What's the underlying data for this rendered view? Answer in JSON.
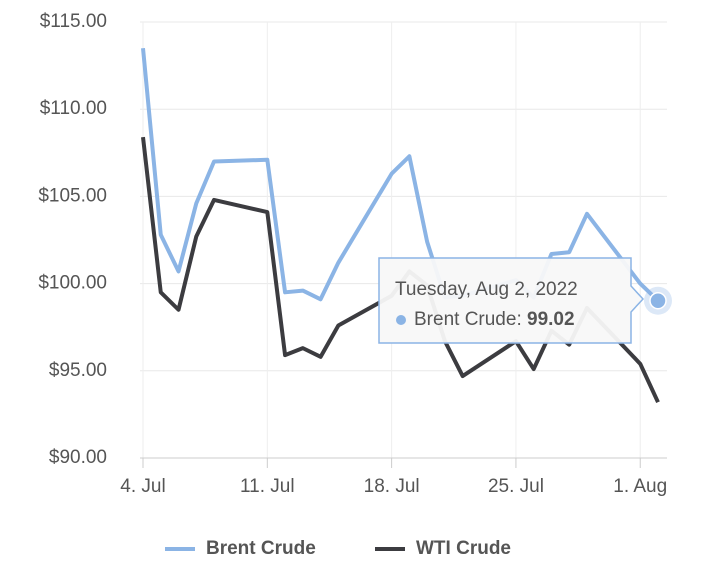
{
  "chart_data": {
    "type": "line",
    "x": [
      "2022-07-04",
      "2022-07-05",
      "2022-07-06",
      "2022-07-07",
      "2022-07-08",
      "2022-07-11",
      "2022-07-12",
      "2022-07-13",
      "2022-07-14",
      "2022-07-15",
      "2022-07-18",
      "2022-07-19",
      "2022-07-20",
      "2022-07-21",
      "2022-07-22",
      "2022-07-25",
      "2022-07-26",
      "2022-07-27",
      "2022-07-28",
      "2022-07-29",
      "2022-08-01",
      "2022-08-02"
    ],
    "series": [
      {
        "name": "Brent Crude",
        "color": "#8bb4e5",
        "values": [
          113.5,
          102.8,
          100.7,
          104.6,
          107.0,
          107.1,
          99.5,
          99.6,
          99.1,
          101.2,
          106.3,
          107.3,
          102.4,
          99.2,
          99.3,
          100.2,
          99.2,
          101.7,
          101.8,
          104.0,
          100.0,
          99.02
        ]
      },
      {
        "name": "WTI Crude",
        "color": "#3c3c40",
        "values": [
          108.4,
          99.5,
          98.5,
          102.7,
          104.8,
          104.1,
          95.9,
          96.3,
          95.8,
          97.6,
          99.3,
          100.7,
          99.9,
          96.7,
          94.7,
          96.7,
          95.1,
          97.3,
          96.5,
          98.6,
          95.4,
          93.2
        ]
      }
    ],
    "xlim": [
      "2022-07-04",
      "2022-08-02"
    ],
    "xticks": [
      {
        "value": "2022-07-04",
        "label": "4. Jul"
      },
      {
        "value": "2022-07-11",
        "label": "11. Jul"
      },
      {
        "value": "2022-07-18",
        "label": "18. Jul"
      },
      {
        "value": "2022-07-25",
        "label": "25. Jul"
      },
      {
        "value": "2022-08-01",
        "label": "1. Aug"
      }
    ],
    "ylim": [
      90,
      115
    ],
    "yticks": [
      {
        "value": 90,
        "label": "$90.00"
      },
      {
        "value": 95,
        "label": "$95.00"
      },
      {
        "value": 100,
        "label": "$100.00"
      },
      {
        "value": 105,
        "label": "$105.00"
      },
      {
        "value": 110,
        "label": "$110.00"
      },
      {
        "value": 115,
        "label": "$115.00"
      }
    ],
    "grid": true,
    "legend": "bottom",
    "tooltip": {
      "title": "Tuesday, Aug 2, 2022"
    }
  }
}
